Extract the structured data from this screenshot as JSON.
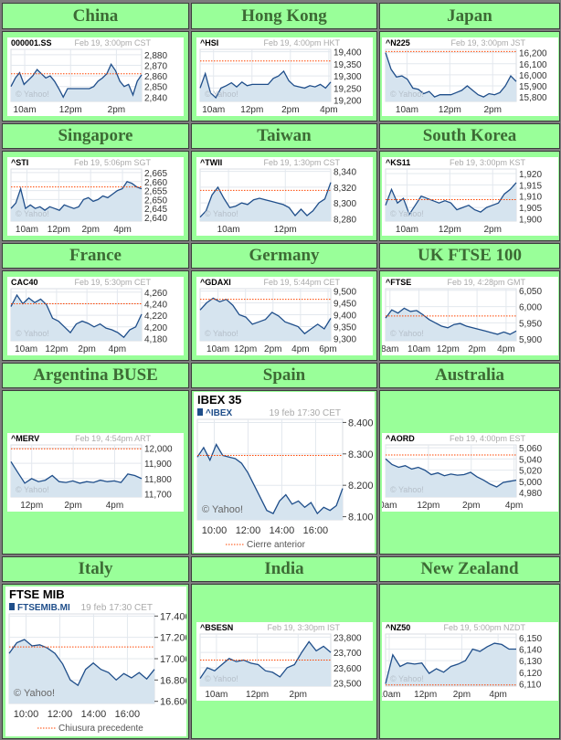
{
  "colors": {
    "cell": "#99ff99",
    "title": "#3d6b35",
    "line": "#1f4e8a",
    "fill": "#d6e4ef",
    "prev_close": "#ff4500",
    "grid": "#e3e8ee"
  },
  "watermark": "© Yahoo!",
  "markets": [
    {
      "name": "China"
    },
    {
      "name": "Hong Kong"
    },
    {
      "name": "Japan"
    },
    {
      "name": "Singapore"
    },
    {
      "name": "Taiwan"
    },
    {
      "name": "South Korea"
    },
    {
      "name": "France"
    },
    {
      "name": "Germany"
    },
    {
      "name": "UK FTSE 100"
    },
    {
      "name": "Argentina BUSE"
    },
    {
      "name": "Spain"
    },
    {
      "name": "Australia"
    },
    {
      "name": "Italy"
    },
    {
      "name": "India"
    },
    {
      "name": "New Zealand"
    }
  ],
  "chart_data": [
    {
      "type": "line",
      "symbol": "000001.SS",
      "timestamp": "Feb 19, 3:00pm CST",
      "x_range": [
        9.4,
        15.1
      ],
      "x_ticks": [
        {
          "v": 10,
          "label": "10am"
        },
        {
          "v": 12,
          "label": "12pm"
        },
        {
          "v": 14,
          "label": "2pm"
        }
      ],
      "y_range": [
        2836,
        2885
      ],
      "y_ticks": [
        {
          "v": 2880,
          "label": "2,880"
        },
        {
          "v": 2870,
          "label": "2,870"
        },
        {
          "v": 2860,
          "label": "2,860"
        },
        {
          "v": 2850,
          "label": "2,850"
        },
        {
          "v": 2840,
          "label": "2,840"
        }
      ],
      "prev_close": 2862,
      "values": [
        2850,
        2858,
        2863,
        2852,
        2856,
        2860,
        2866,
        2862,
        2858,
        2860,
        2855,
        2848,
        2840,
        2848,
        2848,
        2848,
        2848,
        2848,
        2848,
        2850,
        2855,
        2858,
        2862,
        2871,
        2865,
        2855,
        2850,
        2852,
        2842,
        2855,
        2861
      ]
    },
    {
      "type": "line",
      "symbol": "^HSI",
      "timestamp": "Feb 19, 4:00pm HKT",
      "x_range": [
        9.3,
        16.1
      ],
      "x_ticks": [
        {
          "v": 10,
          "label": "10am"
        },
        {
          "v": 12,
          "label": "12pm"
        },
        {
          "v": 14,
          "label": "2pm"
        },
        {
          "v": 16,
          "label": "4pm"
        }
      ],
      "y_range": [
        19195,
        19410
      ],
      "y_ticks": [
        {
          "v": 19400,
          "label": "19,400"
        },
        {
          "v": 19350,
          "label": "19,350"
        },
        {
          "v": 19300,
          "label": "19,300"
        },
        {
          "v": 19250,
          "label": "19,250"
        },
        {
          "v": 19200,
          "label": "19,200"
        }
      ],
      "prev_close": 19362,
      "values": [
        19250,
        19310,
        19230,
        19210,
        19250,
        19260,
        19272,
        19255,
        19275,
        19260,
        19265,
        19265,
        19265,
        19265,
        19290,
        19300,
        19320,
        19280,
        19260,
        19255,
        19250,
        19260,
        19255,
        19265,
        19250,
        19275
      ]
    },
    {
      "type": "line",
      "symbol": "^N225",
      "timestamp": "Feb 19, 3:00pm JST",
      "x_range": [
        9,
        15.1
      ],
      "x_ticks": [
        {
          "v": 10,
          "label": "10am"
        },
        {
          "v": 12,
          "label": "12pm"
        },
        {
          "v": 14,
          "label": "2pm"
        }
      ],
      "y_range": [
        15760,
        16230
      ],
      "y_ticks": [
        {
          "v": 16200,
          "label": "16,200"
        },
        {
          "v": 16100,
          "label": "16,100"
        },
        {
          "v": 16000,
          "label": "16,000"
        },
        {
          "v": 15900,
          "label": "15,900"
        },
        {
          "v": 15800,
          "label": "15,800"
        }
      ],
      "prev_close": 16210,
      "values": [
        16200,
        16050,
        15980,
        15990,
        15960,
        15880,
        15870,
        15830,
        15850,
        15800,
        15820,
        15820,
        15820,
        15840,
        15860,
        15900,
        15860,
        15820,
        15800,
        15830,
        15820,
        15840,
        15900,
        15990,
        15940
      ]
    },
    {
      "type": "line",
      "symbol": "^STI",
      "timestamp": "Feb 19, 5:06pm  SGT",
      "x_range": [
        9,
        17.2
      ],
      "x_ticks": [
        {
          "v": 10,
          "label": "10am"
        },
        {
          "v": 12,
          "label": "12pm"
        },
        {
          "v": 14,
          "label": "2pm"
        },
        {
          "v": 16,
          "label": "4pm"
        }
      ],
      "y_range": [
        2638,
        2667
      ],
      "y_ticks": [
        {
          "v": 2665,
          "label": "2,665"
        },
        {
          "v": 2660,
          "label": "2,660"
        },
        {
          "v": 2655,
          "label": "2,655"
        },
        {
          "v": 2650,
          "label": "2,650"
        },
        {
          "v": 2645,
          "label": "2,645"
        },
        {
          "v": 2640,
          "label": "2,640"
        }
      ],
      "prev_close": 2657,
      "values": [
        2645,
        2648,
        2656,
        2645,
        2647,
        2645,
        2646,
        2644,
        2646,
        2645,
        2644,
        2647,
        2646,
        2645,
        2646,
        2650,
        2651,
        2649,
        2650,
        2652,
        2651,
        2653,
        2655,
        2656,
        2660,
        2659,
        2657,
        2656
      ]
    },
    {
      "type": "line",
      "symbol": "^TWII",
      "timestamp": "Feb 19, 1:30pm CST",
      "x_range": [
        9,
        13.6
      ],
      "x_ticks": [
        {
          "v": 10,
          "label": "10am"
        },
        {
          "v": 12,
          "label": "12pm"
        }
      ],
      "y_range": [
        8277,
        8343
      ],
      "y_ticks": [
        {
          "v": 8340,
          "label": "8,340"
        },
        {
          "v": 8320,
          "label": "8,320"
        },
        {
          "v": 8300,
          "label": "8,300"
        },
        {
          "v": 8280,
          "label": "8,280"
        }
      ],
      "prev_close": 8316,
      "values": [
        8282,
        8290,
        8310,
        8320,
        8306,
        8294,
        8296,
        8300,
        8298,
        8304,
        8306,
        8304,
        8302,
        8300,
        8298,
        8294,
        8284,
        8292,
        8284,
        8290,
        8300,
        8305,
        8326
      ]
    },
    {
      "type": "line",
      "symbol": "^KS11",
      "timestamp": "Feb 19, 3:00pm KST",
      "x_range": [
        9,
        15.1
      ],
      "x_ticks": [
        {
          "v": 10,
          "label": "10am"
        },
        {
          "v": 12,
          "label": "12pm"
        },
        {
          "v": 14,
          "label": "2pm"
        }
      ],
      "y_range": [
        1899,
        1922
      ],
      "y_ticks": [
        {
          "v": 1920,
          "label": "1,920"
        },
        {
          "v": 1915,
          "label": "1,915"
        },
        {
          "v": 1910,
          "label": "1,910"
        },
        {
          "v": 1905,
          "label": "1,905"
        },
        {
          "v": 1900,
          "label": "1,900"
        }
      ],
      "prev_close": 1908.5,
      "values": [
        1906,
        1913,
        1907,
        1909,
        1902,
        1906,
        1910,
        1909,
        1908,
        1907,
        1908,
        1907,
        1904,
        1905,
        1906,
        1904,
        1903,
        1905,
        1906,
        1907,
        1911,
        1913,
        1916
      ]
    },
    {
      "type": "line",
      "symbol": "CAC40",
      "timestamp": "Feb 19, 5:30pm CET",
      "x_range": [
        9,
        17.6
      ],
      "x_ticks": [
        {
          "v": 10,
          "label": "10am"
        },
        {
          "v": 12,
          "label": "12pm"
        },
        {
          "v": 14,
          "label": "2pm"
        },
        {
          "v": 16,
          "label": "4pm"
        }
      ],
      "y_range": [
        4176,
        4266
      ],
      "y_ticks": [
        {
          "v": 4260,
          "label": "4,260"
        },
        {
          "v": 4240,
          "label": "4,240"
        },
        {
          "v": 4220,
          "label": "4,220"
        },
        {
          "v": 4200,
          "label": "4,200"
        },
        {
          "v": 4180,
          "label": "4,180"
        }
      ],
      "prev_close": 4240,
      "values": [
        4235,
        4255,
        4240,
        4250,
        4242,
        4248,
        4238,
        4215,
        4210,
        4200,
        4190,
        4205,
        4210,
        4206,
        4200,
        4205,
        4198,
        4195,
        4190,
        4182,
        4195,
        4200,
        4222
      ]
    },
    {
      "type": "line",
      "symbol": "^GDAXI",
      "timestamp": "Feb 19, 5:44pm CET",
      "x_range": [
        8.7,
        18.2
      ],
      "x_ticks": [
        {
          "v": 10,
          "label": "10am"
        },
        {
          "v": 12,
          "label": "12pm"
        },
        {
          "v": 14,
          "label": "2pm"
        },
        {
          "v": 16,
          "label": "4pm"
        },
        {
          "v": 18,
          "label": "6pm"
        }
      ],
      "y_range": [
        9290,
        9510
      ],
      "y_ticks": [
        {
          "v": 9500,
          "label": "9,500"
        },
        {
          "v": 9450,
          "label": "9,450"
        },
        {
          "v": 9400,
          "label": "9,400"
        },
        {
          "v": 9350,
          "label": "9,350"
        },
        {
          "v": 9300,
          "label": "9,300"
        }
      ],
      "prev_close": 9465,
      "values": [
        9420,
        9450,
        9470,
        9455,
        9465,
        9440,
        9400,
        9390,
        9360,
        9370,
        9380,
        9410,
        9395,
        9370,
        9360,
        9350,
        9320,
        9340,
        9360,
        9340,
        9385
      ]
    },
    {
      "type": "line",
      "symbol": "^FTSE",
      "timestamp": "Feb 19, 4:28pm GMT",
      "x_range": [
        7.7,
        16.7
      ],
      "x_ticks": [
        {
          "v": 8,
          "label": "8am"
        },
        {
          "v": 10,
          "label": "10am"
        },
        {
          "v": 12,
          "label": "12pm"
        },
        {
          "v": 14,
          "label": "2pm"
        },
        {
          "v": 16,
          "label": "4pm"
        }
      ],
      "y_range": [
        5895,
        6055
      ],
      "y_ticks": [
        {
          "v": 6050,
          "label": "6,050"
        },
        {
          "v": 6000,
          "label": "6,000"
        },
        {
          "v": 5950,
          "label": "5,950"
        },
        {
          "v": 5900,
          "label": "5,900"
        }
      ],
      "prev_close": 5971,
      "values": [
        5965,
        5990,
        5980,
        5995,
        5985,
        5988,
        5975,
        5960,
        5950,
        5940,
        5935,
        5945,
        5948,
        5940,
        5935,
        5930,
        5925,
        5920,
        5915,
        5922,
        5915,
        5925
      ]
    },
    {
      "type": "line",
      "symbol": "^MERV",
      "timestamp": "Feb 19, 4:54pm  ART",
      "x_range": [
        11,
        17.3
      ],
      "x_ticks": [
        {
          "v": 12,
          "label": "12pm"
        },
        {
          "v": 14,
          "label": "2pm"
        },
        {
          "v": 16,
          "label": "4pm"
        }
      ],
      "y_range": [
        11680,
        12020
      ],
      "y_ticks": [
        {
          "v": 12000,
          "label": "12,000"
        },
        {
          "v": 11900,
          "label": "11,900"
        },
        {
          "v": 11800,
          "label": "11,800"
        },
        {
          "v": 11700,
          "label": "11,700"
        }
      ],
      "prev_close": 11995,
      "values": [
        11910,
        11840,
        11770,
        11800,
        11780,
        11790,
        11820,
        11780,
        11775,
        11785,
        11770,
        11780,
        11775,
        11790,
        11780,
        11785,
        11775,
        11830,
        11820,
        11800
      ]
    },
    {
      "type": "line",
      "large": true,
      "title": "IBEX 35",
      "symbol": "^IBEX",
      "timestamp": "19 feb 17:30 CET",
      "legend": "Cierre anterior",
      "x_range": [
        9,
        17.6
      ],
      "x_ticks": [
        {
          "v": 10,
          "label": "10:00"
        },
        {
          "v": 12,
          "label": "12:00"
        },
        {
          "v": 14,
          "label": "14:00"
        },
        {
          "v": 16,
          "label": "16:00"
        }
      ],
      "y_range": [
        8090,
        8410
      ],
      "y_ticks": [
        {
          "v": 8400,
          "label": "8.400"
        },
        {
          "v": 8300,
          "label": "8.300"
        },
        {
          "v": 8200,
          "label": "8.200"
        },
        {
          "v": 8100,
          "label": "8.100"
        }
      ],
      "prev_close": 8295,
      "values": [
        8290,
        8320,
        8280,
        8330,
        8295,
        8290,
        8285,
        8270,
        8240,
        8200,
        8160,
        8120,
        8110,
        8150,
        8170,
        8140,
        8150,
        8130,
        8145,
        8110,
        8130,
        8120,
        8135,
        8190
      ]
    },
    {
      "type": "line",
      "symbol": "^AORD",
      "timestamp": "Feb 19, 4:00pm EST",
      "x_range": [
        10,
        16.1
      ],
      "x_ticks": [
        {
          "v": 10,
          "label": "10am"
        },
        {
          "v": 12,
          "label": "12pm"
        },
        {
          "v": 14,
          "label": "2pm"
        },
        {
          "v": 16,
          "label": "4pm"
        }
      ],
      "y_range": [
        4972,
        5065
      ],
      "y_ticks": [
        {
          "v": 5060,
          "label": "5,060"
        },
        {
          "v": 5040,
          "label": "5,040"
        },
        {
          "v": 5020,
          "label": "5,020"
        },
        {
          "v": 5000,
          "label": "5,000"
        },
        {
          "v": 4980,
          "label": "4,980"
        }
      ],
      "prev_close": 5047,
      "values": [
        5040,
        5030,
        5025,
        5028,
        5022,
        5025,
        5020,
        5012,
        5015,
        5010,
        5013,
        5011,
        5012,
        5016,
        5008,
        5002,
        4995,
        4990,
        4998,
        5000,
        5002
      ]
    },
    {
      "type": "line",
      "large": true,
      "title": "FTSE MIB",
      "symbol": "FTSEMIB.MI",
      "timestamp": "19 feb 17:30 CET",
      "legend": "Chiusura precedente",
      "x_range": [
        9,
        17.6
      ],
      "x_ticks": [
        {
          "v": 10,
          "label": "10:00"
        },
        {
          "v": 12,
          "label": "12:00"
        },
        {
          "v": 14,
          "label": "14:00"
        },
        {
          "v": 16,
          "label": "16:00"
        }
      ],
      "y_range": [
        16580,
        17420
      ],
      "y_ticks": [
        {
          "v": 17400,
          "label": "17.400"
        },
        {
          "v": 17200,
          "label": "17.200"
        },
        {
          "v": 17000,
          "label": "17.000"
        },
        {
          "v": 16800,
          "label": "16.800"
        },
        {
          "v": 16600,
          "label": "16.600"
        }
      ],
      "prev_close": 17110,
      "values": [
        17050,
        17150,
        17180,
        17120,
        17130,
        17100,
        17050,
        16950,
        16800,
        16750,
        16900,
        16960,
        16900,
        16870,
        16800,
        16860,
        16820,
        16870,
        16810,
        16900
      ]
    },
    {
      "type": "line",
      "symbol": "^BSESN",
      "timestamp": "Feb 19, 3:30pm IST",
      "x_range": [
        9.2,
        15.6
      ],
      "x_ticks": [
        {
          "v": 10,
          "label": "10am"
        },
        {
          "v": 12,
          "label": "12pm"
        },
        {
          "v": 14,
          "label": "2pm"
        }
      ],
      "y_range": [
        23480,
        23820
      ],
      "y_ticks": [
        {
          "v": 23800,
          "label": "23,800"
        },
        {
          "v": 23700,
          "label": "23,700"
        },
        {
          "v": 23600,
          "label": "23,600"
        },
        {
          "v": 23500,
          "label": "23,500"
        }
      ],
      "prev_close": 23650,
      "values": [
        23530,
        23600,
        23580,
        23620,
        23660,
        23640,
        23650,
        23630,
        23620,
        23580,
        23570,
        23540,
        23600,
        23620,
        23700,
        23770,
        23710,
        23740,
        23700
      ]
    },
    {
      "type": "line",
      "symbol": "^NZ50",
      "timestamp": "Feb 19, 5:00pm NZDT",
      "x_range": [
        9.8,
        17
      ],
      "x_ticks": [
        {
          "v": 10,
          "label": "10am"
        },
        {
          "v": 12,
          "label": "12pm"
        },
        {
          "v": 14,
          "label": "2pm"
        },
        {
          "v": 16,
          "label": "4pm"
        }
      ],
      "y_range": [
        6108,
        6153
      ],
      "y_ticks": [
        {
          "v": 6150,
          "label": "6,150"
        },
        {
          "v": 6140,
          "label": "6,140"
        },
        {
          "v": 6130,
          "label": "6,130"
        },
        {
          "v": 6120,
          "label": "6,120"
        },
        {
          "v": 6110,
          "label": "6,110"
        }
      ],
      "prev_close": 6109,
      "values": [
        6110,
        6135,
        6125,
        6128,
        6127,
        6128,
        6119,
        6123,
        6120,
        6125,
        6127,
        6130,
        6140,
        6138,
        6142,
        6145,
        6144,
        6140,
        6140
      ]
    }
  ]
}
